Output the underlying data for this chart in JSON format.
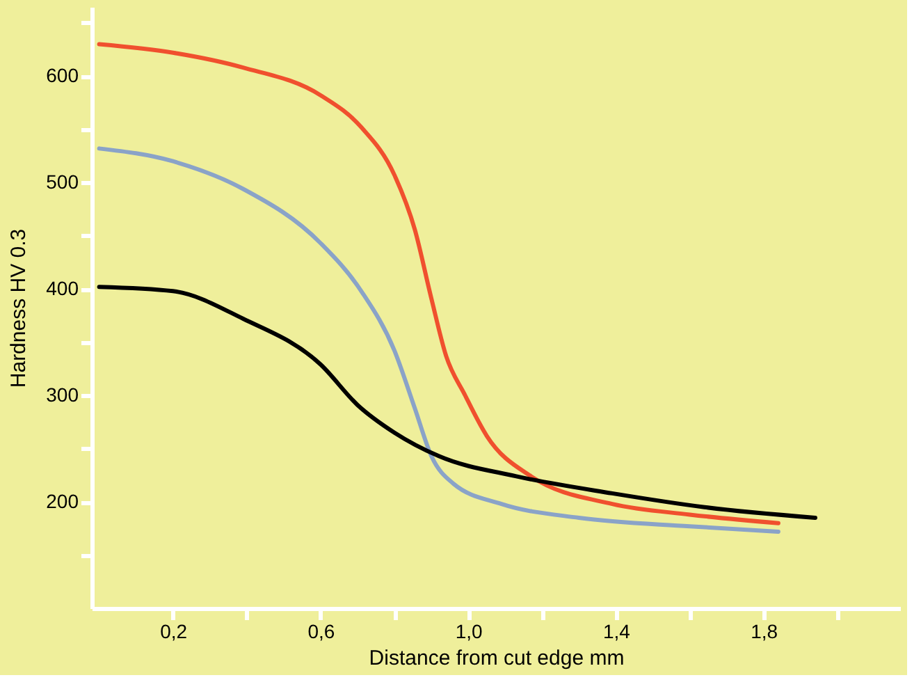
{
  "chart_data": {
    "type": "line",
    "xlabel": "Distance from cut edge mm",
    "ylabel": "Hardness HV 0.3",
    "xlim": [
      -0.02,
      2.17
    ],
    "ylim": [
      100,
      665
    ],
    "xticks": [
      {
        "value": 0.2,
        "label": "0,2"
      },
      {
        "value": 0.4,
        "label": null
      },
      {
        "value": 0.6,
        "label": "0,6"
      },
      {
        "value": 0.8,
        "label": null
      },
      {
        "value": 1.0,
        "label": "1,0"
      },
      {
        "value": 1.2,
        "label": null
      },
      {
        "value": 1.4,
        "label": "1,4"
      },
      {
        "value": 1.6,
        "label": null
      },
      {
        "value": 1.8,
        "label": "1,8"
      },
      {
        "value": 2.0,
        "label": null
      }
    ],
    "yticks": [
      {
        "value": 150,
        "label": null
      },
      200,
      {
        "value": 250,
        "label": null
      },
      300,
      {
        "value": 350,
        "label": null
      },
      400,
      {
        "value": 450,
        "label": null
      },
      500,
      {
        "value": 550,
        "label": null
      },
      600,
      {
        "value": 650,
        "label": null
      }
    ],
    "grid": false,
    "marker": "none",
    "line_style": "solid",
    "series": [
      {
        "color": "#f0502e",
        "x": [
          0,
          0.2,
          0.39,
          0.6,
          0.71,
          0.8,
          0.855,
          0.9,
          0.94,
          0.99,
          1.05,
          1.17,
          1.39,
          1.6,
          1.84
        ],
        "values": [
          630,
          622,
          608,
          582,
          552,
          507,
          456,
          391,
          337,
          301,
          262,
          224,
          198,
          188,
          180
        ]
      },
      {
        "color": "#8aa3c8",
        "x": [
          0,
          0.2,
          0.39,
          0.6,
          0.71,
          0.8,
          0.855,
          0.9,
          0.96,
          1.09,
          1.3,
          1.6,
          1.84
        ],
        "values": [
          532,
          520,
          494,
          443,
          398,
          342,
          288,
          243,
          217,
          198,
          185,
          177,
          172
        ]
      },
      {
        "color": "#000000",
        "x": [
          0,
          0.2,
          0.39,
          0.6,
          0.7,
          0.8,
          0.92,
          1.13,
          1.39,
          1.64,
          1.94
        ],
        "values": [
          402,
          398,
          372,
          329,
          291,
          265,
          243,
          224,
          208,
          195,
          185
        ]
      }
    ]
  }
}
